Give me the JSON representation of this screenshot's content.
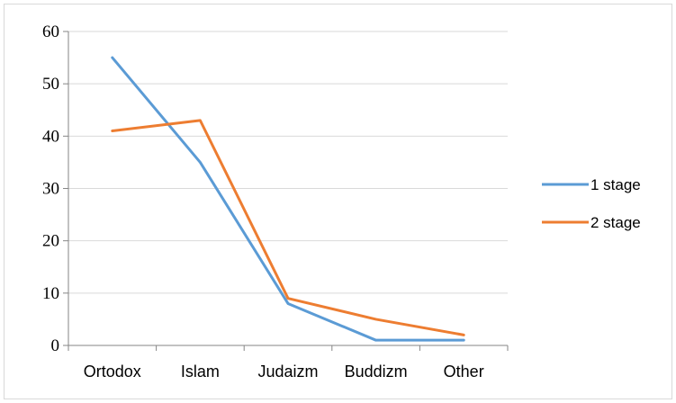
{
  "chart_data": {
    "type": "line",
    "title": "",
    "xlabel": "",
    "ylabel": "",
    "categories": [
      "Ortodox",
      "Islam",
      "Judaizm",
      "Buddizm",
      "Other"
    ],
    "ylim": [
      0,
      60
    ],
    "yticks": [
      0,
      10,
      20,
      30,
      40,
      50,
      60
    ],
    "grid": true,
    "legend_position": "right",
    "series": [
      {
        "name": "1 stage",
        "color": "#5b9bd5",
        "values": [
          55,
          35,
          8,
          1,
          1
        ]
      },
      {
        "name": "2 stage",
        "color": "#ed7d31",
        "values": [
          41,
          43,
          9,
          5,
          2
        ]
      }
    ]
  }
}
